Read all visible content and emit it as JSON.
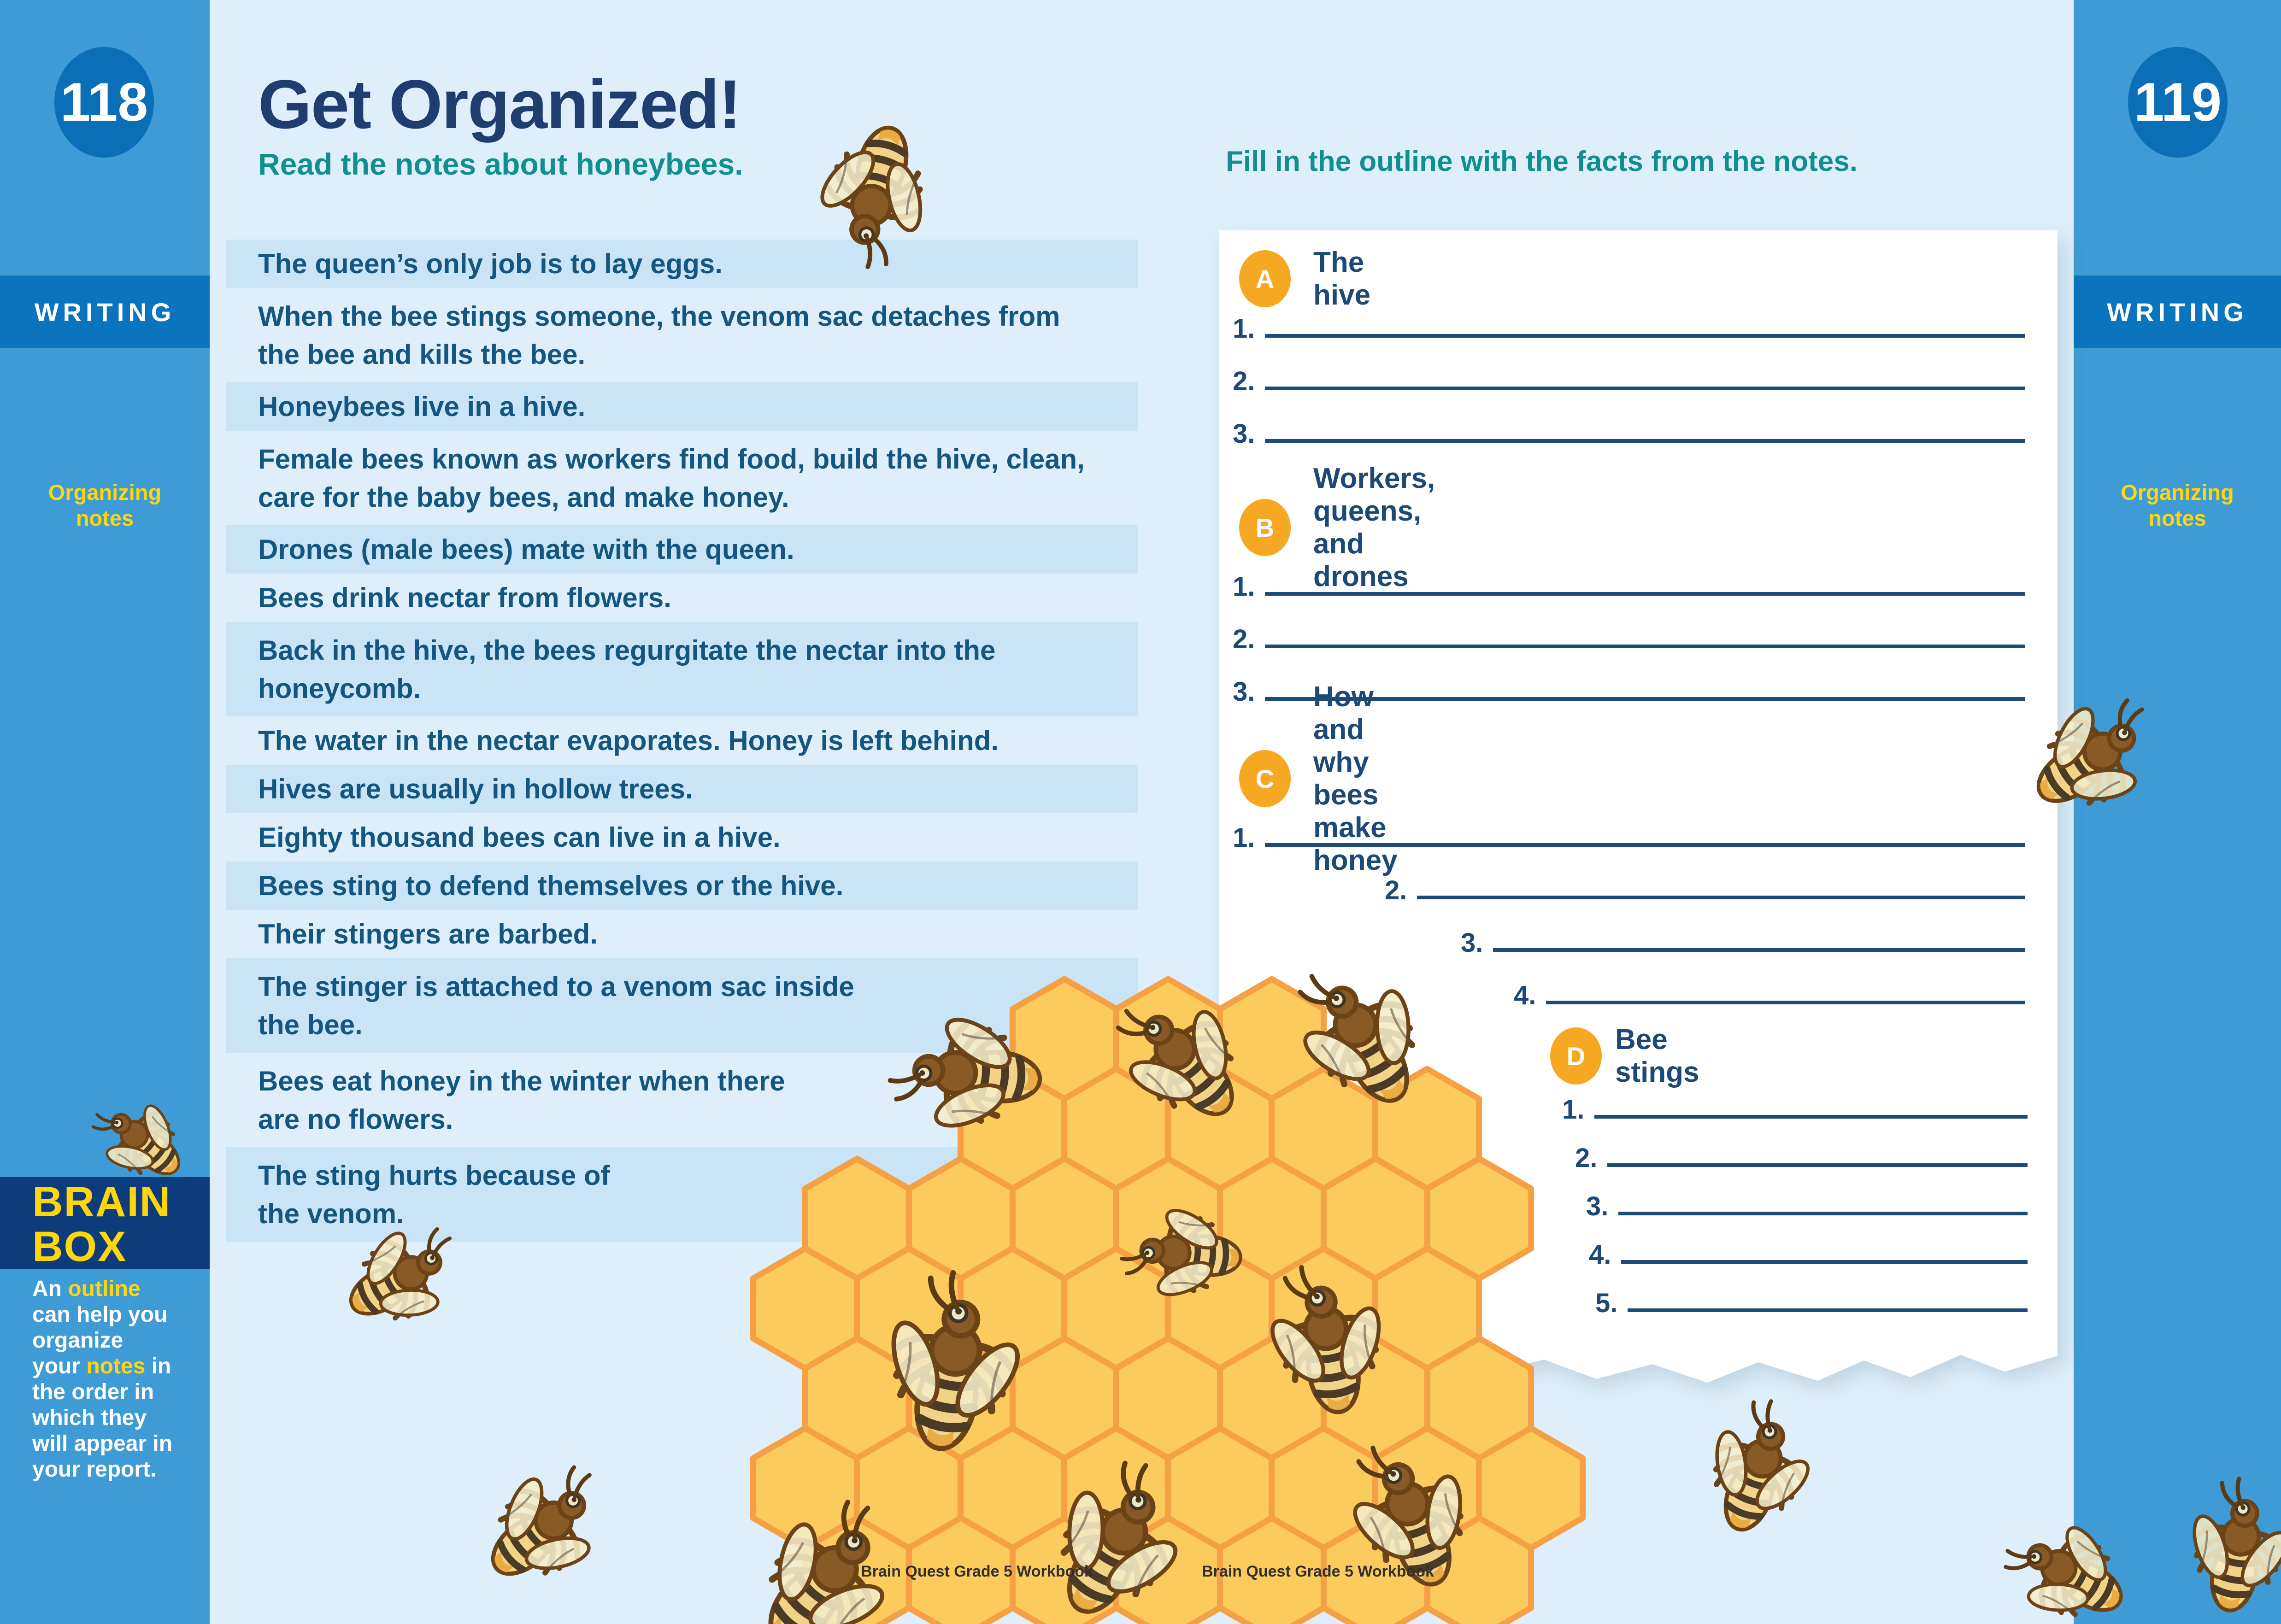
{
  "page_left": {
    "page_number": "118",
    "section_label": "WRITING",
    "sidebar_note": "Organizing\nnotes",
    "title": "Get Organized!",
    "subtitle": "Read the notes about honeybees.",
    "notes": [
      {
        "highlight": true,
        "lines": [
          "The queen’s only job is to lay eggs."
        ]
      },
      {
        "highlight": false,
        "lines": [
          "When the bee stings someone, the venom sac detaches from",
          "the bee and kills the bee."
        ]
      },
      {
        "highlight": true,
        "lines": [
          "Honeybees live in a hive."
        ]
      },
      {
        "highlight": false,
        "lines": [
          "Female bees known as workers find food, build the hive, clean,",
          "care for the baby bees, and make honey."
        ]
      },
      {
        "highlight": true,
        "lines": [
          "Drones (male bees) mate with the queen."
        ]
      },
      {
        "highlight": false,
        "lines": [
          "Bees drink nectar from flowers."
        ]
      },
      {
        "highlight": true,
        "lines": [
          "Back in the hive, the bees regurgitate the nectar into the",
          "honeycomb."
        ]
      },
      {
        "highlight": false,
        "lines": [
          "The water in the nectar evaporates. Honey is left behind."
        ]
      },
      {
        "highlight": true,
        "lines": [
          "Hives are usually in hollow trees."
        ]
      },
      {
        "highlight": false,
        "lines": [
          "Eighty thousand bees can live in a hive."
        ]
      },
      {
        "highlight": true,
        "lines": [
          "Bees sting to defend themselves or the hive."
        ]
      },
      {
        "highlight": false,
        "lines": [
          "Their stingers are barbed."
        ]
      },
      {
        "highlight": true,
        "lines": [
          "The stinger is attached to a venom sac inside",
          "the bee."
        ]
      },
      {
        "highlight": false,
        "lines": [
          "Bees eat honey in the winter when there",
          "are no flowers."
        ]
      },
      {
        "highlight": true,
        "lines": [
          "The sting hurts because of",
          "the venom."
        ]
      }
    ],
    "brainbox": {
      "title_line1": "BRAIN",
      "title_line2": "BOX",
      "body_lines": [
        [
          {
            "t": "An ",
            "b": false
          },
          {
            "t": "outline",
            "b": true
          }
        ],
        [
          {
            "t": "can help you",
            "b": false
          }
        ],
        [
          {
            "t": "organize",
            "b": false
          }
        ],
        [
          {
            "t": "your ",
            "b": false
          },
          {
            "t": "notes",
            "b": true
          },
          {
            "t": " in",
            "b": false
          }
        ],
        [
          {
            "t": "the order in",
            "b": false
          }
        ],
        [
          {
            "t": "which they",
            "b": false
          }
        ],
        [
          {
            "t": "will appear in",
            "b": false
          }
        ],
        [
          {
            "t": "your report.",
            "b": false
          }
        ]
      ]
    },
    "footer": "Brain Quest Grade 5 Workbook"
  },
  "page_right": {
    "page_number": "119",
    "section_label": "WRITING",
    "sidebar_note": "Organizing\nnotes",
    "instruction_prefix": "Fill in the ",
    "instruction_bold": "outline",
    "instruction_suffix": " with the facts from the notes.",
    "outline": [
      {
        "letter": "A",
        "label": "The hive",
        "items": [
          {
            "num": "1."
          },
          {
            "num": "2."
          },
          {
            "num": "3."
          }
        ]
      },
      {
        "letter": "B",
        "label": "Workers, queens, and drones",
        "items": [
          {
            "num": "1."
          },
          {
            "num": "2."
          },
          {
            "num": "3."
          }
        ]
      },
      {
        "letter": "C",
        "label": "How and why bees make honey",
        "items": [
          {
            "num": "1."
          },
          {
            "num": "2."
          },
          {
            "num": "3."
          },
          {
            "num": "4."
          }
        ]
      },
      {
        "letter": "D",
        "label": "Bee stings",
        "items": [
          {
            "num": "1."
          },
          {
            "num": "2."
          },
          {
            "num": "3."
          },
          {
            "num": "4."
          },
          {
            "num": "5."
          }
        ]
      }
    ],
    "footer": "Brain Quest Grade 5 Workbook"
  },
  "colors": {
    "sidebar_blue": "#3E9BD6",
    "band_blue": "#0B74BE",
    "circle_blue": "#0B6FB8",
    "brainbox_navy": "#0D3C7C",
    "page_background": "#DEEFFB",
    "note_highlight": "#C9E4F7",
    "note_text": "#14567F",
    "title_navy": "#1E3E70",
    "teal": "#118F90",
    "yellow": "#FFD60A",
    "badge_orange": "#F7A823",
    "blank_line_navy": "#1D4B78",
    "honeycomb_fill": "#FBCB5E",
    "honeycomb_stroke": "#F5A045",
    "card_white": "#FFFFFF"
  }
}
